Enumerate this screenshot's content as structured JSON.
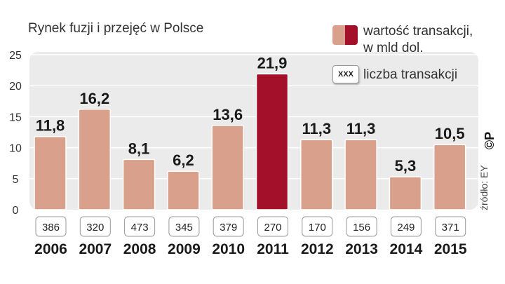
{
  "title": "Rynek fuzji i przejęć w Polsce",
  "legend": {
    "value_label_line1": "wartość transakcji,",
    "value_label_line2": "w mld dol.",
    "count_box": "XXX",
    "count_label": "liczba transakcji"
  },
  "source": "źródło: EY",
  "logo": "©P",
  "colors": {
    "bar": "#d9a08b",
    "highlight": "#a3102a",
    "plot_bg": "#ebebeb"
  },
  "chart_data": {
    "type": "bar",
    "categories": [
      "2006",
      "2007",
      "2008",
      "2009",
      "2010",
      "2011",
      "2012",
      "2013",
      "2014",
      "2015"
    ],
    "values": [
      11.8,
      16.2,
      8.1,
      6.2,
      13.6,
      21.9,
      11.3,
      11.3,
      5.3,
      10.5
    ],
    "value_labels": [
      "11,8",
      "16,2",
      "8,1",
      "6,2",
      "13,6",
      "21,9",
      "11,3",
      "11,3",
      "5,3",
      "10,5"
    ],
    "counts": [
      386,
      320,
      473,
      345,
      379,
      270,
      170,
      156,
      249,
      371
    ],
    "highlight_index": 5,
    "ylim": [
      0,
      25
    ],
    "yticks": [
      0,
      5,
      10,
      15,
      20,
      25
    ],
    "grid": true
  }
}
